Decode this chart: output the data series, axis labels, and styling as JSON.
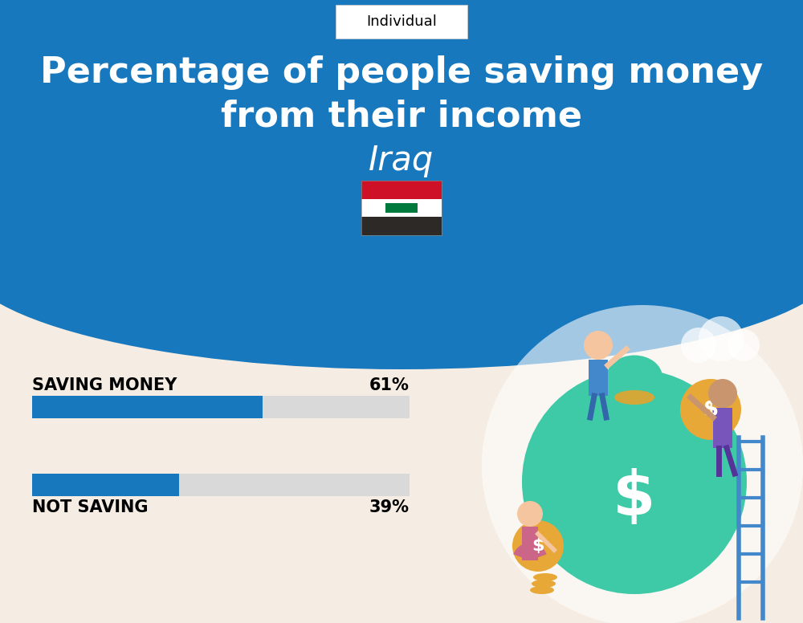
{
  "title_line1": "Percentage of people saving money",
  "title_line2": "from their income",
  "country": "Iraq",
  "tab_label": "Individual",
  "saving_label": "SAVING MONEY",
  "saving_value": 61,
  "saving_text": "61%",
  "not_saving_label": "NOT SAVING",
  "not_saving_value": 39,
  "not_saving_text": "39%",
  "blue_color": "#1878be",
  "bar_fill_color": "#1878be",
  "bar_bg_color": "#d9d9d9",
  "header_bg_color": "#1878be",
  "page_bg_color": "#f5ede3",
  "white": "#ffffff",
  "black": "#000000",
  "flag_red": "#ce1126",
  "flag_white": "#ffffff",
  "flag_black": "#2d2926",
  "flag_green": "#007a3d",
  "green_bag": "#3ec9a7",
  "gold_coin": "#e8a838",
  "ladder_blue": "#4488cc"
}
